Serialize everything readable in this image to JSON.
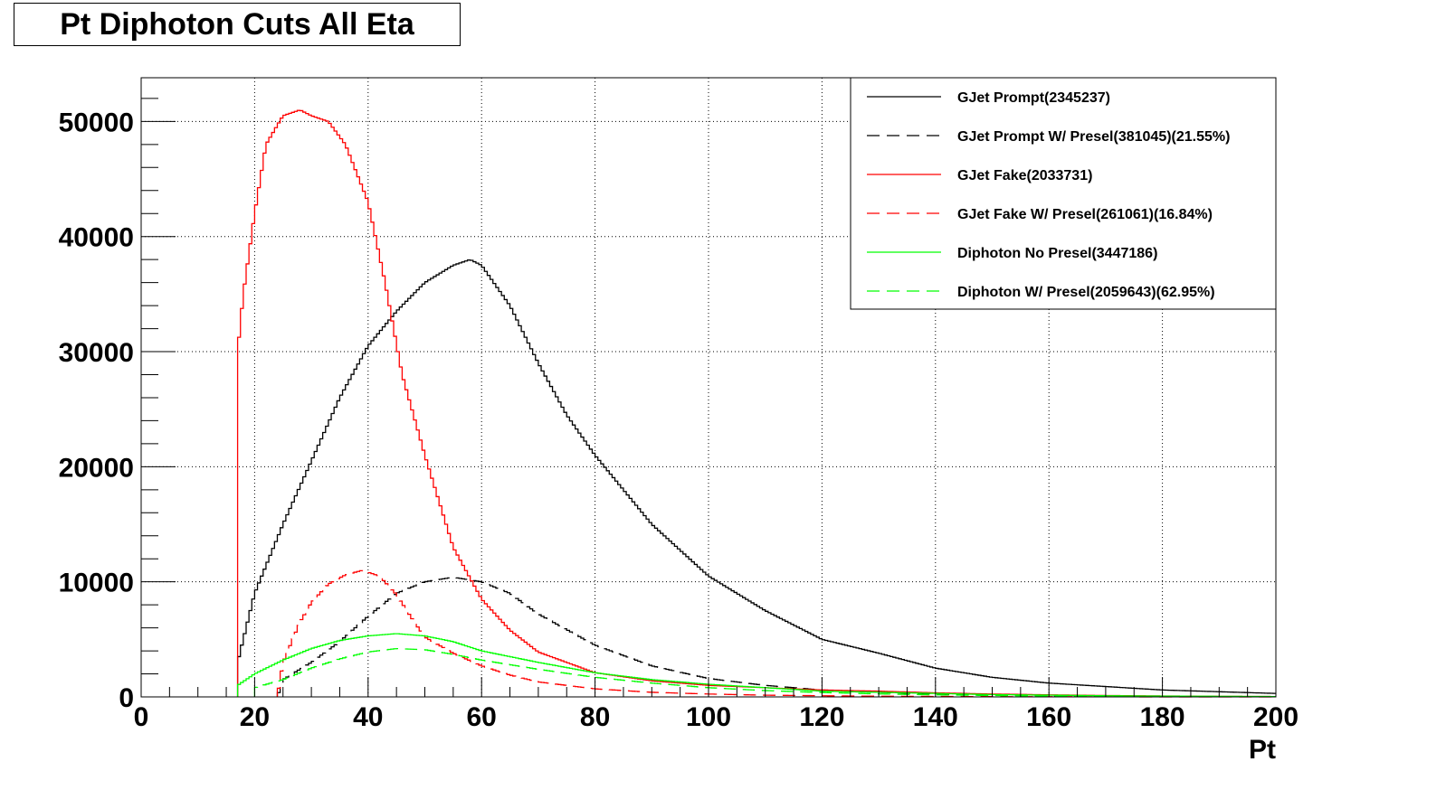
{
  "title": "Pt Diphoton Cuts All Eta",
  "chart_data": {
    "type": "line",
    "style": "step-histogram",
    "title": "Pt Diphoton Cuts All Eta",
    "xlabel": "Pt",
    "ylabel": "",
    "xlim": [
      0,
      200
    ],
    "ylim": [
      0,
      53800
    ],
    "x_ticks": [
      "0",
      "20",
      "40",
      "60",
      "80",
      "100",
      "120",
      "140",
      "160",
      "180",
      "200"
    ],
    "y_ticks": [
      "0",
      "10000",
      "20000",
      "30000",
      "40000",
      "50000"
    ],
    "grid": true,
    "legend_position": "top-right",
    "series": [
      {
        "name": "GJet Prompt(2345237)",
        "color": "#000000",
        "dash": "solid",
        "x": [
          17,
          20,
          25,
          30,
          35,
          40,
          45,
          50,
          55,
          58,
          60,
          65,
          70,
          75,
          80,
          90,
          100,
          110,
          120,
          130,
          140,
          150,
          160,
          170,
          180,
          190,
          200
        ],
        "y": [
          3000,
          9000,
          15000,
          20500,
          26000,
          30500,
          33500,
          36000,
          37500,
          38000,
          37500,
          34000,
          29000,
          24500,
          21000,
          15000,
          10500,
          7500,
          5000,
          3800,
          2500,
          1700,
          1200,
          900,
          600,
          450,
          300
        ]
      },
      {
        "name": "GJet Prompt W/ Presel(381045)(21.55%)",
        "color": "#000000",
        "dash": "long-dash",
        "x": [
          24,
          25,
          30,
          35,
          40,
          45,
          50,
          55,
          60,
          65,
          70,
          80,
          90,
          100,
          110,
          120,
          130,
          140,
          150,
          160,
          170,
          180,
          190,
          200
        ],
        "y": [
          0,
          1500,
          3000,
          4800,
          7000,
          9000,
          10000,
          10400,
          10000,
          9000,
          7200,
          4500,
          2700,
          1600,
          1000,
          600,
          400,
          250,
          150,
          100,
          60,
          40,
          20,
          10
        ]
      },
      {
        "name": "GJet Fake(2033731)",
        "color": "#ff0000",
        "dash": "solid",
        "x": [
          17,
          18,
          20,
          22,
          25,
          28,
          30,
          33,
          36,
          40,
          43,
          46,
          50,
          55,
          60,
          65,
          70,
          80,
          90,
          100,
          110,
          120,
          130,
          140,
          150,
          160,
          170,
          180,
          190,
          200
        ],
        "y": [
          30000,
          35000,
          42000,
          48000,
          50500,
          51000,
          50500,
          50000,
          48000,
          43000,
          36000,
          28000,
          21000,
          13000,
          8500,
          5800,
          3900,
          2100,
          1400,
          1000,
          800,
          600,
          500,
          350,
          250,
          180,
          120,
          80,
          50,
          30
        ]
      },
      {
        "name": "GJet Fake W/ Presel(261061)(16.84%)",
        "color": "#ff0000",
        "dash": "long-dash",
        "x": [
          24,
          25,
          28,
          30,
          33,
          36,
          39,
          42,
          45,
          48,
          50,
          55,
          60,
          65,
          70,
          80,
          90,
          100,
          110,
          120,
          130,
          140,
          150,
          160,
          170,
          180,
          190,
          200
        ],
        "y": [
          0,
          3000,
          6500,
          8200,
          9800,
          10600,
          11000,
          10500,
          8900,
          6600,
          5200,
          3800,
          2700,
          1900,
          1300,
          700,
          400,
          250,
          150,
          100,
          60,
          40,
          25,
          15,
          10,
          5,
          3,
          2
        ]
      },
      {
        "name": "Diphoton No Presel(3447186)",
        "color": "#00ff00",
        "dash": "solid",
        "x": [
          17,
          20,
          25,
          30,
          35,
          40,
          45,
          50,
          55,
          60,
          70,
          80,
          90,
          100,
          110,
          120,
          130,
          140,
          150,
          160,
          170,
          180,
          190,
          200
        ],
        "y": [
          1000,
          2000,
          3200,
          4200,
          4900,
          5300,
          5500,
          5300,
          4800,
          4000,
          3000,
          2100,
          1500,
          1100,
          800,
          500,
          400,
          300,
          200,
          150,
          100,
          70,
          50,
          30
        ]
      },
      {
        "name": "Diphoton W/ Presel(2059643)(62.95%)",
        "color": "#00ff00",
        "dash": "long-dash",
        "x": [
          20,
          25,
          30,
          35,
          40,
          45,
          50,
          55,
          60,
          70,
          80,
          90,
          100,
          110,
          120,
          130,
          140,
          150,
          160,
          170,
          180,
          190,
          200
        ],
        "y": [
          800,
          1500,
          2500,
          3300,
          3900,
          4200,
          4100,
          3700,
          3200,
          2400,
          1700,
          1200,
          800,
          550,
          380,
          260,
          180,
          120,
          80,
          50,
          30,
          20,
          10
        ]
      }
    ]
  }
}
